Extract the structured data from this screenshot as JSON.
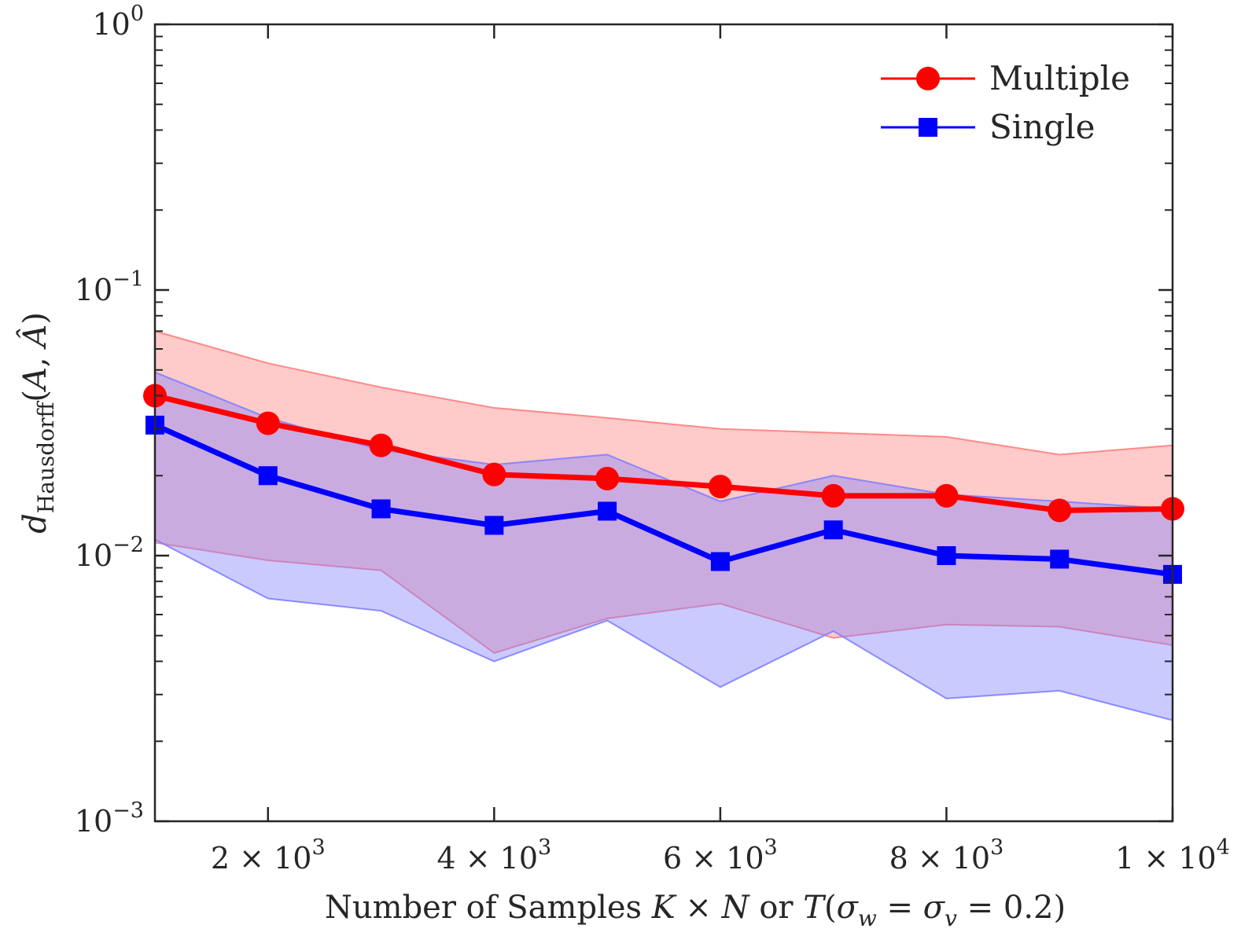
{
  "chart_data": {
    "type": "line",
    "x": [
      1000,
      2000,
      3000,
      4000,
      5000,
      6000,
      7000,
      8000,
      9000,
      10000
    ],
    "xlim": [
      1000,
      10000
    ],
    "ylim": [
      0.001,
      1
    ],
    "yscale": "log",
    "xlabel": "Number of Samples K × N or T(σw = σv = 0.2)",
    "ylabel": "dHausdorff(A, Â)",
    "xticks": [
      {
        "value": 2000,
        "mantissa": "2",
        "exponent": "3"
      },
      {
        "value": 4000,
        "mantissa": "4",
        "exponent": "3"
      },
      {
        "value": 6000,
        "mantissa": "6",
        "exponent": "3"
      },
      {
        "value": 8000,
        "mantissa": "8",
        "exponent": "3"
      },
      {
        "value": 10000,
        "mantissa": "1",
        "exponent": "4"
      }
    ],
    "yticks": [
      {
        "value": 1,
        "base": "10",
        "exponent": "0"
      },
      {
        "value": 0.1,
        "base": "10",
        "exponent": "−1"
      },
      {
        "value": 0.01,
        "base": "10",
        "exponent": "−2"
      },
      {
        "value": 0.001,
        "base": "10",
        "exponent": "−3"
      }
    ],
    "legend_position": "top-right",
    "series": [
      {
        "name": "Multiple",
        "color": "#ff0000",
        "marker": "circle",
        "band_fill": "#ff8080",
        "values": [
          0.04,
          0.0315,
          0.026,
          0.0202,
          0.0195,
          0.0182,
          0.0168,
          0.0168,
          0.0148,
          0.015
        ],
        "upper": [
          0.07,
          0.053,
          0.043,
          0.036,
          0.033,
          0.03,
          0.029,
          0.028,
          0.024,
          0.026
        ],
        "lower": [
          0.0112,
          0.0096,
          0.0088,
          0.0043,
          0.0058,
          0.0066,
          0.0049,
          0.0055,
          0.0054,
          0.0046
        ]
      },
      {
        "name": "Single",
        "color": "#0000ff",
        "marker": "square",
        "band_fill": "#8080ff",
        "values": [
          0.031,
          0.02,
          0.015,
          0.013,
          0.0147,
          0.0095,
          0.0125,
          0.01,
          0.0097,
          0.0085
        ],
        "upper": [
          0.049,
          0.033,
          0.025,
          0.022,
          0.024,
          0.016,
          0.02,
          0.017,
          0.016,
          0.015
        ],
        "lower": [
          0.0115,
          0.0069,
          0.0062,
          0.004,
          0.0057,
          0.0032,
          0.0052,
          0.0029,
          0.0031,
          0.0024
        ]
      }
    ]
  }
}
